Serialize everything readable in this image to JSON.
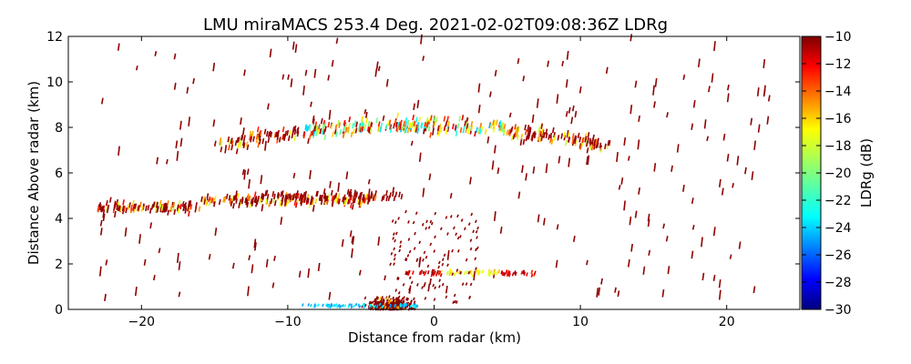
{
  "chart_data": {
    "type": "heatmap",
    "title": "LMU miraMACS 253.4 Deg. 2021-02-02T09:08:36Z  LDRg",
    "xlabel": "Distance from radar (km)",
    "ylabel": "Distance Above radar  (km)",
    "xlim": [
      -25,
      25
    ],
    "ylim": [
      0,
      12
    ],
    "xticks": [
      "−20",
      "−10",
      "0",
      "10",
      "20"
    ],
    "xtick_values": [
      -20,
      -10,
      0,
      10,
      20
    ],
    "yticks": [
      "0",
      "2",
      "4",
      "6",
      "8",
      "10",
      "12"
    ],
    "ytick_values": [
      0,
      2,
      4,
      6,
      8,
      10,
      12
    ],
    "colorbar": {
      "label": "LDRg (dB)",
      "range": [
        -30,
        -10
      ],
      "ticks": [
        "−10",
        "−12",
        "−14",
        "−16",
        "−18",
        "−20",
        "−22",
        "−24",
        "−26",
        "−28",
        "−30"
      ],
      "tick_values": [
        -10,
        -12,
        -14,
        -16,
        -18,
        -20,
        -22,
        -24,
        -26,
        -28,
        -30
      ],
      "colormap": [
        "#00007f",
        "#0000ff",
        "#007fff",
        "#00ffff",
        "#7fff7f",
        "#ffff00",
        "#ff7f00",
        "#ff0000",
        "#7f0000"
      ]
    },
    "features": [
      {
        "name": "upper cloud layer",
        "x_range": [
          -15,
          12
        ],
        "z_center": 7.5,
        "ldr_range": [
          -24,
          -10
        ]
      },
      {
        "name": "mid cloud layer",
        "x_range": [
          -23,
          -4
        ],
        "z_center": 4.5,
        "ldr_range": [
          -19,
          -10
        ]
      },
      {
        "name": "low layer",
        "x_range": [
          -2,
          7
        ],
        "z_center": 1.6,
        "ldr_range": [
          -18,
          -10
        ]
      },
      {
        "name": "ground clutter",
        "x_range": [
          -9,
          3
        ],
        "z_center": 0.1,
        "ldr_range": [
          -25,
          -10
        ]
      },
      {
        "name": "scattered noise",
        "x_range": [
          -23,
          23
        ],
        "z_center": 6,
        "ldr_range": [
          -11,
          -10
        ]
      }
    ]
  }
}
